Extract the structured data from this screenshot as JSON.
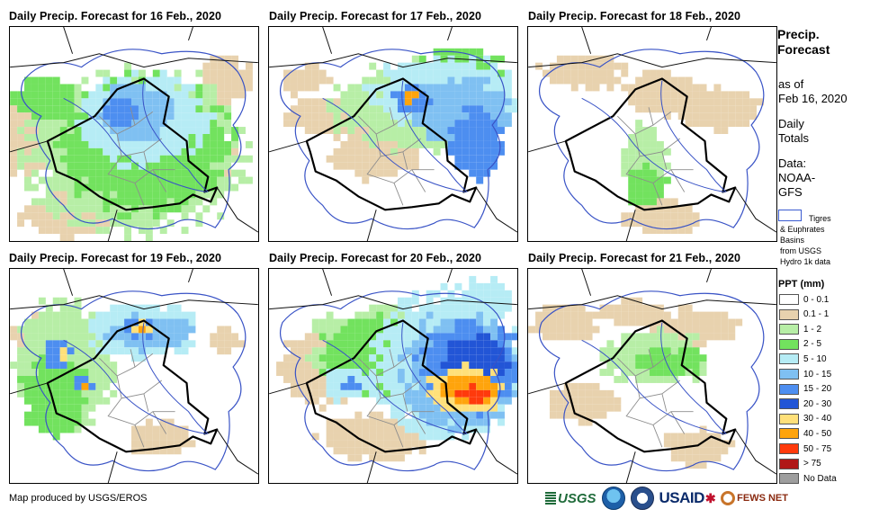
{
  "panels": [
    {
      "title": "Daily Precip. Forecast for 16 Feb., 2020"
    },
    {
      "title": "Daily Precip. Forecast for 17 Feb., 2020"
    },
    {
      "title": "Daily Precip. Forecast for 18 Feb., 2020"
    },
    {
      "title": "Daily Precip. Forecast for 19 Feb., 2020"
    },
    {
      "title": "Daily Precip. Forecast for 20 Feb., 2020"
    },
    {
      "title": "Daily Precip. Forecast for 21 Feb., 2020"
    }
  ],
  "legend": {
    "title_line1": "Precip.",
    "title_line2": "Forecast",
    "asof_line1": "as of",
    "asof_line2": "Feb 16, 2020",
    "daily_line1": "Daily",
    "daily_line2": "Totals",
    "data_line1": "Data:",
    "data_line2": "NOAA-",
    "data_line3": "GFS",
    "basin_line1": "Tigres",
    "basin_line2": "& Euphrates",
    "basin_line3": "Basins",
    "basin_line4": "from USGS",
    "basin_line5": "Hydro 1k data",
    "ppt_title": "PPT (mm)",
    "ppt_classes": [
      {
        "label": "0 - 0.1",
        "color": "#ffffff"
      },
      {
        "label": "0.1 - 1",
        "color": "#e8d2ae"
      },
      {
        "label": "1 - 2",
        "color": "#b7eea6"
      },
      {
        "label": "2 - 5",
        "color": "#72e25e"
      },
      {
        "label": "5 - 10",
        "color": "#b6ecf5"
      },
      {
        "label": "10 - 15",
        "color": "#7fc0f2"
      },
      {
        "label": "15 - 20",
        "color": "#4d8ef0"
      },
      {
        "label": "20 - 30",
        "color": "#2255d6"
      },
      {
        "label": "30 - 40",
        "color": "#ffe07a"
      },
      {
        "label": "40 - 50",
        "color": "#ffa40c"
      },
      {
        "label": "50 - 75",
        "color": "#ff3a0c"
      },
      {
        "label": "> 75",
        "color": "#b01818"
      },
      {
        "label": "No Data",
        "color": "#9e9e9e"
      }
    ]
  },
  "footer": {
    "credit": "Map produced by USGS/EROS",
    "logo_usgs": "USGS",
    "logo_usaid": "USAID",
    "logo_fews": "FEWS NET"
  }
}
